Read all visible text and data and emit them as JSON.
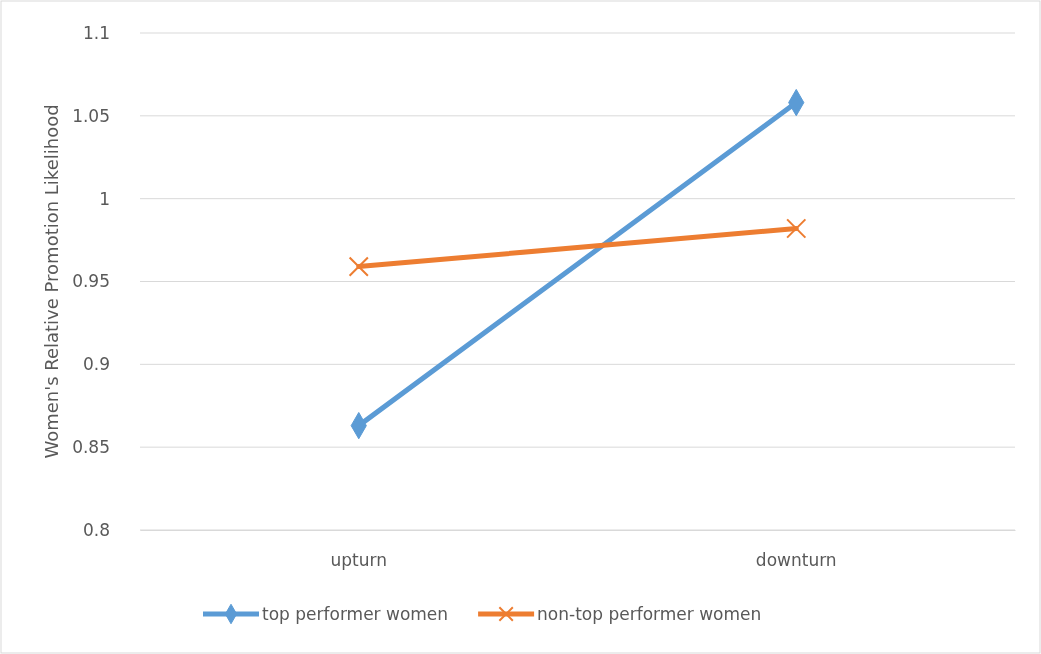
{
  "chart_data": {
    "type": "line",
    "ylabel": "Women's Relative Promotion Likelihood",
    "categories": [
      "upturn",
      "downturn"
    ],
    "series": [
      {
        "name": "top performer women",
        "color": "#5b9bd5",
        "marker": "diamond",
        "values": [
          0.863,
          1.058
        ]
      },
      {
        "name": "non-top performer women",
        "color": "#ed7d31",
        "marker": "cross",
        "values": [
          0.959,
          0.982
        ]
      }
    ],
    "ylim": [
      0.8,
      1.1
    ],
    "yticks": [
      {
        "value": 0.8,
        "label": "0.8"
      },
      {
        "value": 0.85,
        "label": "0.85"
      },
      {
        "value": 0.9,
        "label": "0.9"
      },
      {
        "value": 0.95,
        "label": "0.95"
      },
      {
        "value": 1,
        "label": "1"
      },
      {
        "value": 1.05,
        "label": "1.05"
      },
      {
        "value": 1.1,
        "label": "1.1"
      }
    ],
    "grid": "y",
    "legend": "bottom",
    "line_style": "solid"
  }
}
